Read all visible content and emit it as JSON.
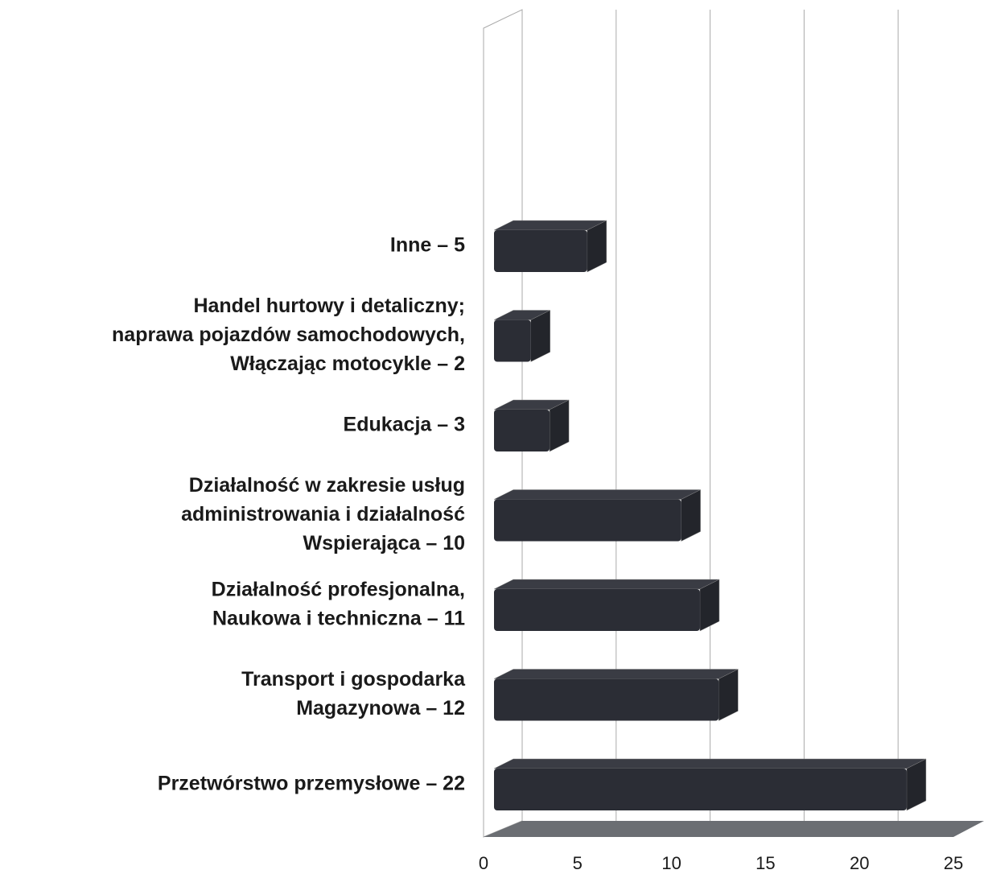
{
  "chart_data": {
    "type": "bar",
    "orientation": "horizontal",
    "categories": [
      [
        "Inne – 5"
      ],
      [
        "Handel hurtowy i detaliczny;",
        "naprawa pojazdów samochodowych,",
        "Włączając motocykle – 2"
      ],
      [
        "Edukacja – 3"
      ],
      [
        "Działalność w zakresie usług",
        "administrowania i działalność",
        "Wspierająca – 10"
      ],
      [
        "Działalność profesjonalna,",
        "Naukowa i techniczna – 11"
      ],
      [
        "Transport i gospodarka",
        "Magazynowa – 12"
      ],
      [
        "Przetwórstwo przemysłowe – 22"
      ]
    ],
    "values": [
      5,
      2,
      3,
      10,
      11,
      12,
      22
    ],
    "color": "#2b2d35",
    "xlim": [
      0,
      25
    ],
    "xticks": [
      0,
      5,
      10,
      15,
      20,
      25
    ],
    "grid": true
  }
}
